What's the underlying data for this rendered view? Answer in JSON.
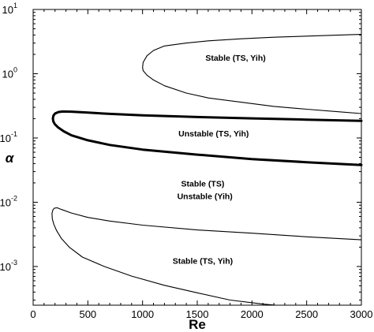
{
  "chart_data": {
    "type": "line",
    "title": "",
    "xlabel": "Re",
    "ylabel": "α",
    "xlim": [
      0,
      3000
    ],
    "ylim": [
      0.00025,
      10
    ],
    "yscale": "log",
    "grid": false,
    "x_ticks": [
      0,
      500,
      1000,
      1500,
      2000,
      2500,
      3000
    ],
    "x_tick_labels": [
      "0",
      "500",
      "1000",
      "1500",
      "2000",
      "2500",
      "3000"
    ],
    "y_ticks": [
      10,
      1,
      0.1,
      0.01,
      0.001
    ],
    "y_tick_labels": [
      {
        "base": "10",
        "exp": "1"
      },
      {
        "base": "10",
        "exp": "0"
      },
      {
        "base": "10",
        "exp": "-1"
      },
      {
        "base": "10",
        "exp": "-2"
      },
      {
        "base": "10",
        "exp": "-3"
      }
    ],
    "series": [
      {
        "style": "thin",
        "x": [
          3000,
          2800,
          2500,
          2200,
          1900,
          1600,
          1400,
          1200,
          1100,
          1040,
          1005,
          1000,
          1005,
          1040,
          1100,
          1200,
          1400,
          1600,
          1900,
          2200,
          2500,
          2800,
          3000
        ],
        "y": [
          4.1,
          4.0,
          3.85,
          3.7,
          3.5,
          3.25,
          3.0,
          2.7,
          2.3,
          1.9,
          1.5,
          1.25,
          1.12,
          0.95,
          0.8,
          0.65,
          0.5,
          0.42,
          0.36,
          0.31,
          0.28,
          0.255,
          0.24
        ]
      },
      {
        "style": "thick",
        "x": [
          3000,
          2500,
          2000,
          1500,
          1000,
          700,
          500,
          350,
          270,
          230,
          200,
          185,
          180,
          185,
          200,
          230,
          280,
          350,
          500,
          700,
          1000,
          1500,
          2000,
          2500,
          3000
        ],
        "y": [
          0.185,
          0.193,
          0.202,
          0.212,
          0.225,
          0.237,
          0.248,
          0.257,
          0.258,
          0.253,
          0.24,
          0.222,
          0.2,
          0.18,
          0.163,
          0.145,
          0.127,
          0.11,
          0.092,
          0.078,
          0.066,
          0.055,
          0.047,
          0.042,
          0.038
        ]
      },
      {
        "style": "thin",
        "x": [
          3000,
          2500,
          2000,
          1500,
          1000,
          700,
          500,
          350,
          260,
          220,
          195,
          180,
          172,
          175,
          190,
          215,
          260,
          330,
          450,
          650,
          900,
          1200,
          1500,
          1800,
          2100,
          2220
        ],
        "y": [
          0.0026,
          0.0029,
          0.0033,
          0.0037,
          0.0044,
          0.0051,
          0.0058,
          0.0068,
          0.0077,
          0.0082,
          0.0081,
          0.0076,
          0.0067,
          0.0055,
          0.0045,
          0.0036,
          0.0027,
          0.002,
          0.0014,
          0.001,
          0.00071,
          0.00051,
          0.00039,
          0.0003,
          0.00026,
          0.00025
        ]
      }
    ],
    "annotations": [
      {
        "text": "Stable (TS, Yih)",
        "x": 1850,
        "y": 1.6
      },
      {
        "text": "Unstable (TS, Yih)",
        "x": 1650,
        "y": 0.105
      },
      {
        "text": "Stable (TS)",
        "x": 1550,
        "y": 0.0175
      },
      {
        "text": "Unstable (Yih)",
        "x": 1570,
        "y": 0.0112
      },
      {
        "text": "Stable (TS, Yih)",
        "x": 1550,
        "y": 0.0011
      }
    ]
  }
}
